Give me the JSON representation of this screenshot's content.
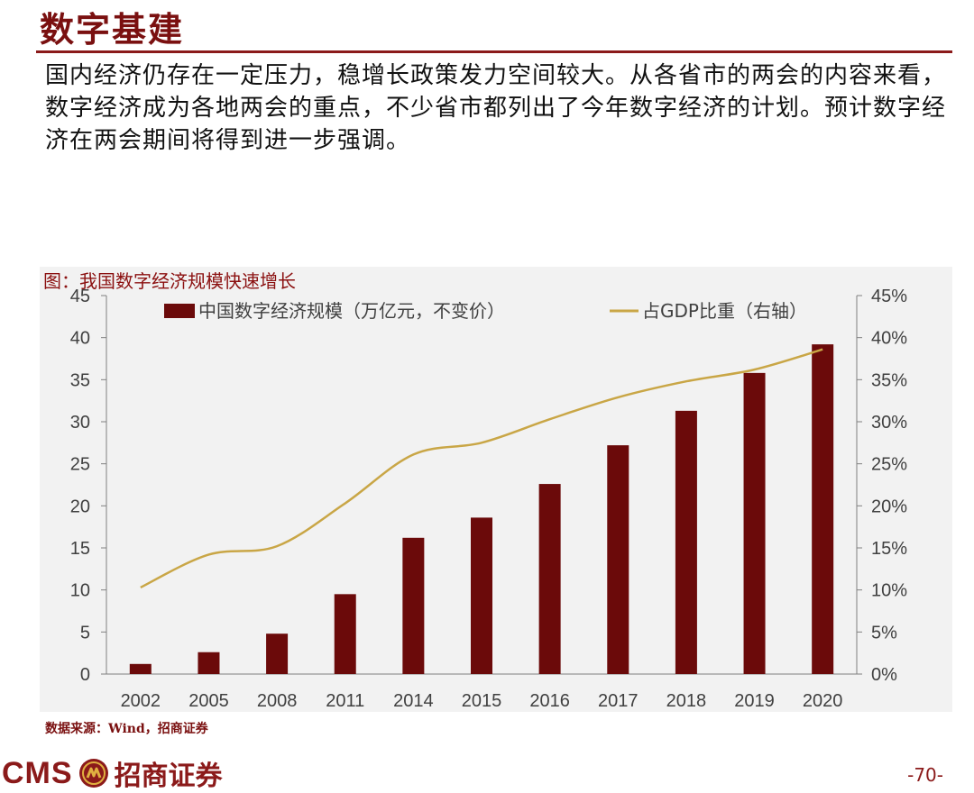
{
  "page": {
    "section_title": "数字基建",
    "intro_text": "国内经济仍存在一定压力，稳增长政策发力空间较大。从各省市的两会的内容来看，数字经济成为各地两会的重点，不少省市都列出了今年数字经济的计划。预计数字经济在两会期间将得到进一步强调。",
    "source": "数据来源：Wind，招商证券",
    "brand_cms": "CMS",
    "brand_name": "招商证券",
    "page_number": "-70-"
  },
  "colors": {
    "bar": "#6b0a0a",
    "line": "#c9a646",
    "brand": "#8b1a1a"
  },
  "chart_data": {
    "type": "bar",
    "title": "图：我国数字经济规模快速增长",
    "categories": [
      "2002",
      "2005",
      "2008",
      "2011",
      "2014",
      "2015",
      "2016",
      "2017",
      "2018",
      "2019",
      "2020"
    ],
    "series": [
      {
        "name": "中国数字经济规模（万亿元，不变价）",
        "type": "bar",
        "axis": "left",
        "values": [
          1.2,
          2.6,
          4.8,
          9.5,
          16.2,
          18.6,
          22.6,
          27.2,
          31.3,
          35.8,
          39.2
        ]
      },
      {
        "name": "占GDP比重（右轴）",
        "type": "line",
        "axis": "right",
        "values": [
          10.3,
          14.2,
          15.2,
          20.3,
          26.1,
          27.5,
          30.3,
          32.9,
          34.8,
          36.2,
          38.6
        ]
      }
    ],
    "y_left": {
      "min": 0,
      "max": 45,
      "ticks": [
        "0",
        "5",
        "10",
        "15",
        "20",
        "25",
        "30",
        "35",
        "40",
        "45"
      ]
    },
    "y_right": {
      "min": 0,
      "max": 45,
      "ticks": [
        "0%",
        "5%",
        "10%",
        "15%",
        "20%",
        "25%",
        "30%",
        "35%",
        "40%",
        "45%"
      ]
    },
    "legend": "top",
    "grid": false
  }
}
